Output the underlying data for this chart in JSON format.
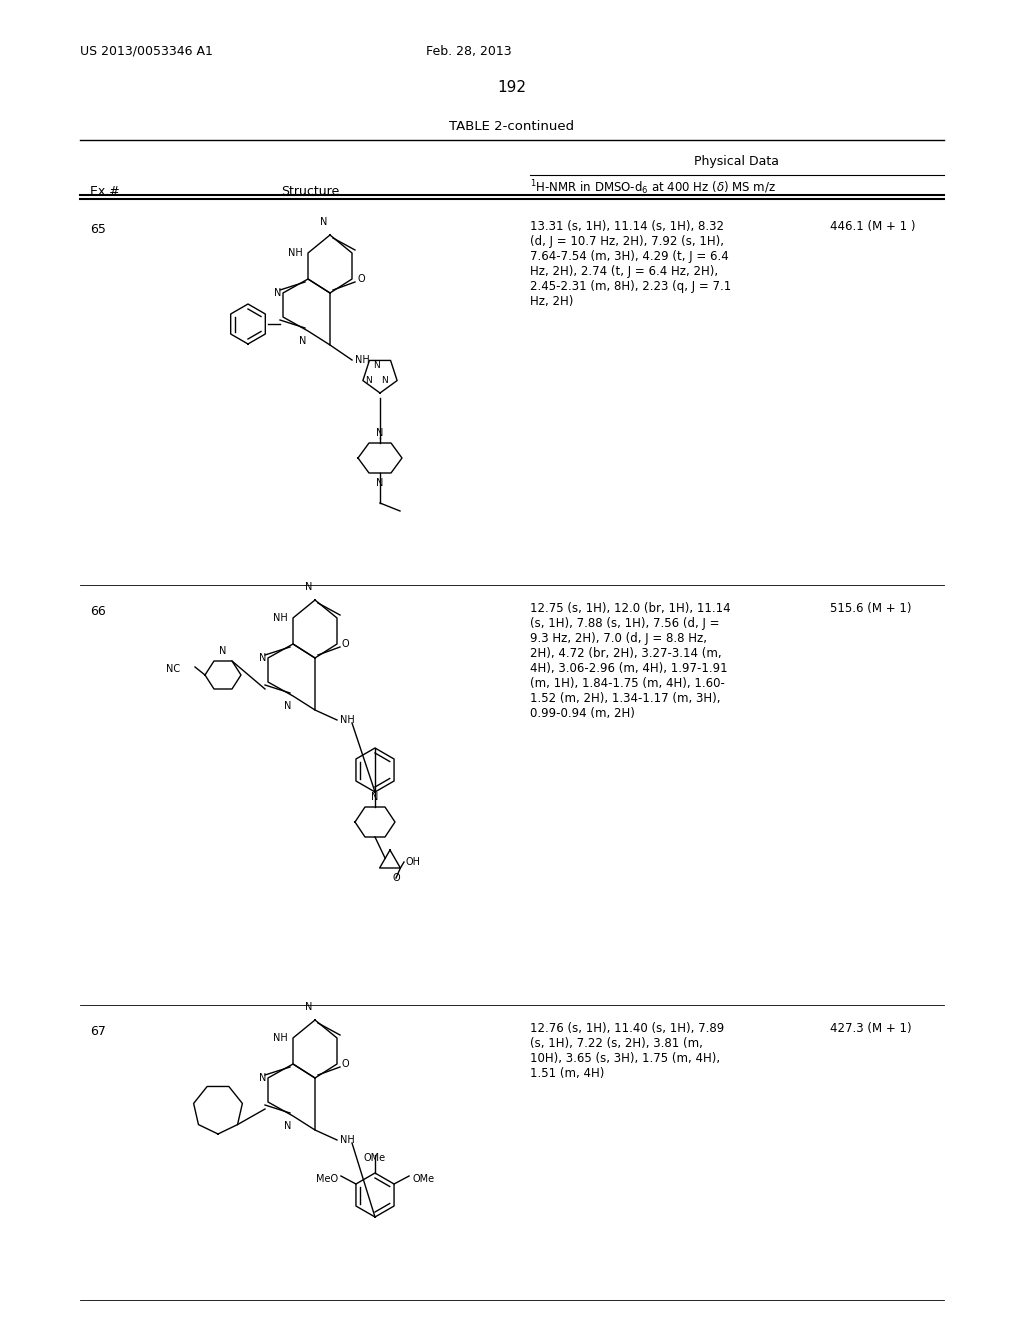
{
  "page_number": "192",
  "patent_number": "US 2013/0053346 A1",
  "patent_date": "Feb. 28, 2013",
  "table_title": "TABLE 2-continued",
  "col_headers": [
    "Ex #",
    "Structure",
    "Physical Data"
  ],
  "physical_data_subheader": "\\u00b9H-NMR in DMSO-d\\u2086 at 400 Hz (\\u03b4) MS m/z",
  "rows": [
    {
      "ex": "65",
      "nmr": "13.31 (s, 1H), 11.14 (s, 1H), 8.32 (d, J = 10.7 Hz, 2H), 7.92 (s, 1H), 7.64-7.54 (m, 3H), 4.29 (t, J = 6.4 Hz, 2H), 2.74 (t, J = 6.4 Hz, 2H), 2.45-2.31 (m, 8H), 2.23 (q, J = 7.1 Hz, 2H)",
      "ms": "446.1 (M + 1 )"
    },
    {
      "ex": "66",
      "nmr": "12.75 (s, 1H), 12.0 (br, 1H), 11.14 (s, 1H), 7.88 (s, 1H), 7.56 (d, J = 9.3 Hz, 2H), 7.0 (d, J = 8.8 Hz, 2H), 4.72 (br, 2H), 3.27-3.14 (m, 4H), 3.06-2.96 (m, 4H), 1.97-1.91 (m, 1H), 1.84-1.75 (m, 4H), 1.60-1.52 (m, 2H), 1.34-1.17 (m, 3H), 0.99-0.94 (m, 2H)",
      "ms": "515.6 (M + 1)"
    },
    {
      "ex": "67",
      "nmr": "12.76 (s, 1H), 11.40 (s, 1H), 7.89 (s, 1H), 7.22 (s, 2H), 3.81 (m, 10H), 3.65 (s, 3H), 1.75 (m, 4H), 1.51 (m, 4H)",
      "ms": "427.3 (M + 1)"
    }
  ],
  "bg_color": "#ffffff",
  "text_color": "#000000",
  "line_color": "#000000"
}
